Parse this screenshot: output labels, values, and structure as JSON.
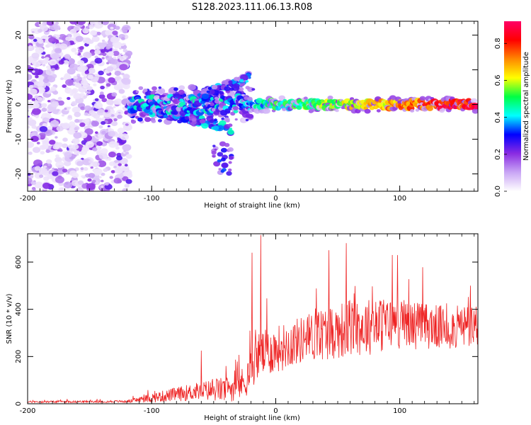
{
  "title": "S128.2023.111.06.13.R08",
  "colors": {
    "snr_line": "#ee2222",
    "colormap": [
      "#ffffff",
      "#c9a6f5",
      "#8a2be2",
      "#0000ff",
      "#00ffff",
      "#00ff44",
      "#ffff00",
      "#ff8800",
      "#ff0000",
      "#ff0066"
    ]
  },
  "chart_data": [
    {
      "type": "heatmap",
      "title": "",
      "xlabel": "Height of straight line (km)",
      "ylabel": "Frequency (Hz)",
      "xlim": [
        -200,
        163
      ],
      "ylim": [
        -25,
        24
      ],
      "xticks": [
        -200,
        -100,
        0,
        100
      ],
      "yticks": [
        -20,
        -10,
        0,
        10,
        20
      ],
      "colorbar": {
        "label": "Normalized spectral amplitude",
        "range": [
          0,
          0.92
        ],
        "ticks": [
          0.0,
          0.2,
          0.4,
          0.6,
          0.8
        ]
      },
      "regions": [
        {
          "name": "noise",
          "x": [
            -200,
            -118
          ],
          "freq_spread": 24,
          "amplitude": 0.1
        },
        {
          "name": "onset",
          "x": [
            -118,
            -20
          ],
          "freq_spread": 5,
          "amplitude": 0.35
        },
        {
          "name": "branch-up",
          "x": [
            -70,
            -20
          ],
          "freq": [
            0,
            9
          ],
          "amplitude": 0.3
        },
        {
          "name": "branch-down",
          "x": [
            -110,
            -30
          ],
          "freq": [
            -2,
            -20
          ],
          "amplitude": 0.25
        },
        {
          "name": "carrier",
          "x": [
            -20,
            163
          ],
          "freq": 0,
          "freq_spread": 1.2,
          "amplitude": [
            0.35,
            0.9
          ]
        }
      ]
    },
    {
      "type": "line",
      "title": "",
      "xlabel": "Height of straight line (km)",
      "ylabel": "SNR (10 * v/v)",
      "xlim": [
        -200,
        163
      ],
      "ylim": [
        0,
        720
      ],
      "xticks": [
        -200,
        -100,
        0,
        100
      ],
      "yticks": [
        0,
        200,
        400,
        600
      ],
      "series": [
        {
          "name": "SNR",
          "envelope_x": [
            -200,
            -120,
            -100,
            -80,
            -60,
            -40,
            -25,
            -15,
            0,
            20,
            40,
            60,
            80,
            100,
            120,
            140,
            163
          ],
          "envelope_mean": [
            8,
            10,
            25,
            40,
            55,
            60,
            90,
            200,
            230,
            270,
            300,
            320,
            330,
            340,
            330,
            320,
            330
          ],
          "envelope_spread": [
            8,
            10,
            40,
            60,
            80,
            110,
            140,
            200,
            200,
            200,
            230,
            250,
            240,
            220,
            200,
            180,
            200
          ],
          "peaks": [
            {
              "x": -60,
              "y": 225
            },
            {
              "x": -40,
              "y": 160
            },
            {
              "x": -12,
              "y": 715
            },
            {
              "x": -19,
              "y": 640
            },
            {
              "x": 43,
              "y": 650
            },
            {
              "x": 57,
              "y": 680
            },
            {
              "x": 94,
              "y": 630
            },
            {
              "x": 157,
              "y": 500
            }
          ]
        }
      ]
    }
  ]
}
